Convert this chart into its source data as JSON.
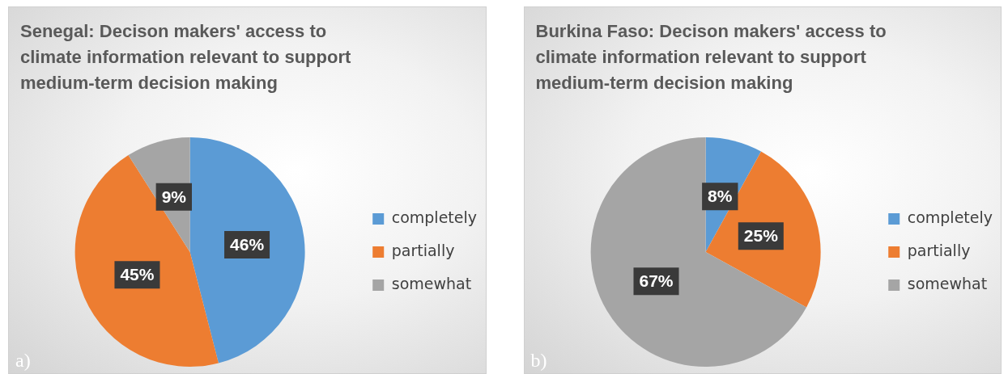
{
  "chart_data": [
    {
      "type": "pie",
      "title": "Senegal: Decison makers' access to climate information relevant to support medium-term decision making",
      "categories": [
        "completely",
        "partially",
        "somewhat"
      ],
      "values": [
        46,
        45,
        9
      ],
      "colors": [
        "#5b9bd5",
        "#ed7d31",
        "#a5a5a5"
      ],
      "value_labels": [
        "46%",
        "45%",
        "9%"
      ],
      "legend": "right",
      "annotations": [
        "a)"
      ]
    },
    {
      "type": "pie",
      "title": "Burkina Faso: Decison makers' access to climate information relevant to support medium-term decision making",
      "categories": [
        "completely",
        "partially",
        "somewhat"
      ],
      "values": [
        8,
        25,
        67
      ],
      "colors": [
        "#5b9bd5",
        "#ed7d31",
        "#a5a5a5"
      ],
      "value_labels": [
        "8%",
        "25%",
        "67%"
      ],
      "legend": "right",
      "annotations": [
        "b)"
      ]
    }
  ]
}
